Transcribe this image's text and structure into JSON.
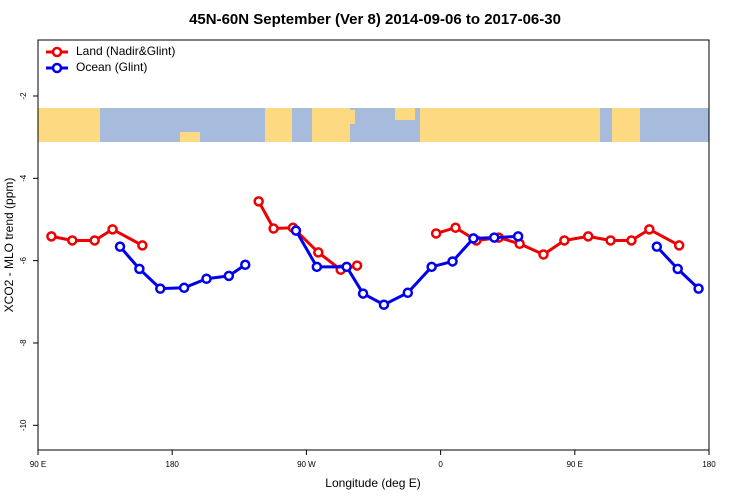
{
  "chart_data": {
    "type": "line",
    "title": "45N-60N September (Ver 8)   2014-09-06 to 2017-06-30",
    "x_label": "Longitude (deg E)",
    "y_label": "XCO2 - MLO trend (ppm)",
    "xlim": [
      90,
      540
    ],
    "ylim": [
      -10.6,
      -0.64
    ],
    "xticks": [
      {
        "value": 90,
        "label": "90 E"
      },
      180,
      {
        "value": 270,
        "label": "90 W"
      },
      {
        "value": 360,
        "label": "0"
      },
      {
        "value": 450,
        "label": "90 E"
      },
      {
        "value": 540,
        "label": "180"
      }
    ],
    "yticks": [
      -2,
      -4,
      -6,
      -8,
      -10
    ],
    "legend": "top-left",
    "series": [
      {
        "name": "Land (Nadir&Glint)",
        "color": "#ee0000",
        "x": [
          99,
          113,
          128,
          140,
          160,
          null,
          238,
          248,
          261,
          278,
          293,
          304,
          null,
          357,
          370,
          384,
          399,
          413,
          429,
          443,
          459,
          474,
          488,
          500,
          520
        ],
        "values": [
          -5.41,
          -5.51,
          -5.51,
          -5.24,
          -5.63,
          null,
          -4.56,
          -5.22,
          -5.2,
          -5.8,
          -6.22,
          -6.12,
          null,
          -5.34,
          -5.2,
          -5.51,
          -5.44,
          -5.59,
          -5.85,
          -5.51,
          -5.41,
          -5.51,
          -5.51,
          -5.24,
          -5.63
        ]
      },
      {
        "name": "Ocean (Glint)",
        "color": "#0000ee",
        "x": [
          145,
          158,
          172,
          188,
          203,
          218,
          229,
          null,
          263,
          277,
          297,
          308,
          322,
          338,
          354,
          368,
          382,
          396,
          412,
          null,
          505,
          519,
          533
        ],
        "values": [
          -5.66,
          -6.2,
          -6.68,
          -6.66,
          -6.44,
          -6.37,
          -6.1,
          null,
          -5.27,
          -6.15,
          -6.15,
          -6.8,
          -7.07,
          -6.78,
          -6.15,
          -6.02,
          -5.46,
          -5.44,
          -5.41,
          null,
          -5.66,
          -6.2,
          -6.68
        ]
      }
    ]
  }
}
